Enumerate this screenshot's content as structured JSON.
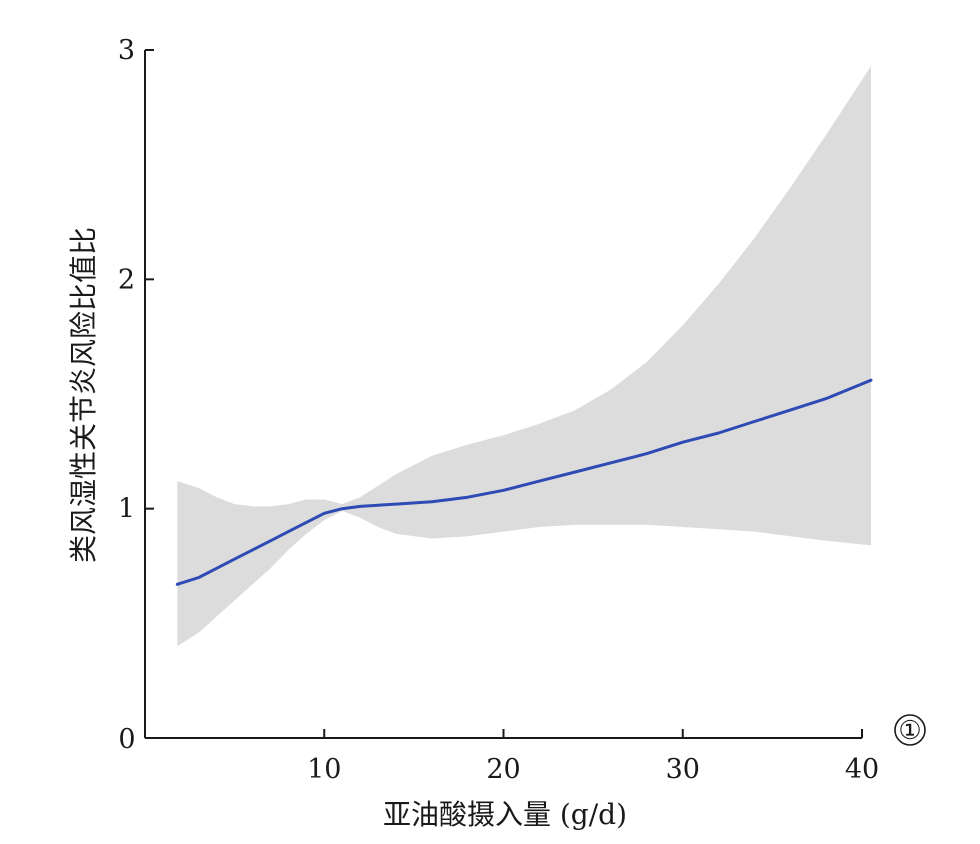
{
  "chart_data": {
    "type": "line",
    "title": "",
    "xlabel": "亚油酸摄入量 (g/d)",
    "ylabel": "类风湿性关节炎风险比值比",
    "xlim": [
      0,
      40
    ],
    "ylim": [
      0,
      3
    ],
    "x_ticks": [
      "0",
      "10",
      "20",
      "30",
      "40"
    ],
    "y_ticks": [
      "1",
      "2",
      "3"
    ],
    "panel_label": "①",
    "grid": false,
    "legend": "none",
    "colors": {
      "line": "#2e4ab4",
      "ci_band": "#dcdcdc",
      "axis": "#1a1a1a"
    },
    "series": [
      {
        "x": [
          1.8,
          3,
          4,
          5,
          6,
          7,
          8,
          9,
          10,
          11,
          12,
          13,
          14,
          16,
          18,
          20,
          22,
          24,
          26,
          28,
          30,
          32,
          34,
          36,
          38,
          40.5
        ],
        "y": [
          0.67,
          0.7,
          0.74,
          0.78,
          0.82,
          0.86,
          0.9,
          0.94,
          0.98,
          1.0,
          1.01,
          1.015,
          1.02,
          1.03,
          1.05,
          1.08,
          1.12,
          1.16,
          1.2,
          1.24,
          1.29,
          1.33,
          1.38,
          1.43,
          1.48,
          1.56
        ],
        "ci_lower": [
          0.4,
          0.46,
          0.53,
          0.6,
          0.67,
          0.74,
          0.82,
          0.89,
          0.95,
          0.99,
          0.96,
          0.92,
          0.89,
          0.87,
          0.88,
          0.9,
          0.92,
          0.93,
          0.93,
          0.93,
          0.92,
          0.91,
          0.9,
          0.88,
          0.86,
          0.84
        ],
        "ci_upper": [
          1.12,
          1.09,
          1.05,
          1.02,
          1.01,
          1.01,
          1.02,
          1.04,
          1.04,
          1.02,
          1.05,
          1.1,
          1.15,
          1.23,
          1.28,
          1.32,
          1.37,
          1.43,
          1.52,
          1.64,
          1.8,
          1.98,
          2.18,
          2.4,
          2.63,
          2.93
        ]
      }
    ]
  }
}
